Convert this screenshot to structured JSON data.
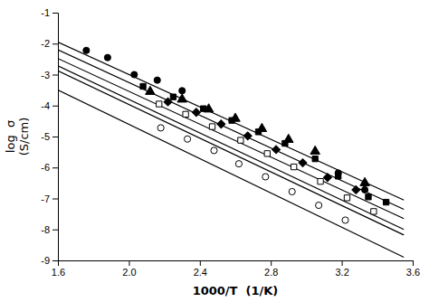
{
  "chart_data": {
    "type": "scatter",
    "title": "",
    "xlabel": "1000/T  (1/K)",
    "ylabel": "log  σ\n(S/cm)",
    "xlim": [
      1.6,
      3.6
    ],
    "ylim": [
      -9,
      -1
    ],
    "xticks": [
      1.6,
      {
        "value": 2.0,
        "label": "2.0"
      },
      2.4,
      2.8,
      3.2,
      3.6
    ],
    "yticks": [
      -9,
      -8,
      -7,
      -6,
      -5,
      -4,
      -3,
      -2,
      -1
    ],
    "series": [
      {
        "type": "line",
        "color": "#000000",
        "x": [
          1.6,
          3.55
        ],
        "values": [
          -1.95,
          -7.05
        ]
      },
      {
        "type": "scatter",
        "marker": "circle",
        "color": "#000000",
        "x": [
          1.76,
          1.88,
          2.03,
          2.16,
          2.3,
          3.18,
          3.33
        ],
        "values": [
          -2.22,
          -2.45,
          -3.0,
          -3.18,
          -3.52,
          -6.18,
          -6.72
        ]
      },
      {
        "type": "line",
        "color": "#000000",
        "x": [
          1.6,
          3.55
        ],
        "values": [
          -2.2,
          -7.35
        ]
      },
      {
        "type": "scatter",
        "marker": "triangle",
        "color": "#000000",
        "x": [
          2.12,
          2.3,
          2.45,
          2.6,
          2.75,
          2.9,
          3.05,
          3.33
        ],
        "values": [
          -3.55,
          -3.8,
          -4.12,
          -4.42,
          -4.75,
          -5.1,
          -5.48,
          -6.5
        ]
      },
      {
        "type": "line",
        "color": "#000000",
        "x": [
          1.6,
          3.55
        ],
        "values": [
          -2.48,
          -7.65
        ]
      },
      {
        "type": "scatter",
        "marker": "square",
        "color": "#000000",
        "x": [
          2.08,
          2.25,
          2.42,
          2.58,
          2.73,
          2.88,
          3.05,
          3.18,
          3.35,
          3.45
        ],
        "values": [
          -3.38,
          -3.72,
          -4.1,
          -4.48,
          -4.85,
          -5.22,
          -5.72,
          -6.28,
          -6.95,
          -7.12
        ]
      },
      {
        "type": "line",
        "color": "#000000",
        "x": [
          1.6,
          3.55
        ],
        "values": [
          -2.72,
          -8.0
        ]
      },
      {
        "type": "scatter",
        "marker": "diamond",
        "color": "#000000",
        "x": [
          2.22,
          2.38,
          2.52,
          2.67,
          2.83,
          2.98,
          3.12,
          3.28
        ],
        "values": [
          -3.88,
          -4.22,
          -4.6,
          -4.98,
          -5.42,
          -5.85,
          -6.32,
          -6.72
        ]
      },
      {
        "type": "line",
        "color": "#000000",
        "x": [
          1.6,
          3.55
        ],
        "values": [
          -2.88,
          -8.18
        ]
      },
      {
        "type": "scatter",
        "marker": "square",
        "color": "#ffffff",
        "x": [
          2.17,
          2.32,
          2.47,
          2.63,
          2.78,
          2.93,
          3.08,
          3.23,
          3.38
        ],
        "values": [
          -3.95,
          -4.28,
          -4.68,
          -5.12,
          -5.55,
          -5.98,
          -6.45,
          -6.98,
          -7.42
        ]
      },
      {
        "type": "line",
        "color": "#000000",
        "x": [
          1.6,
          3.55
        ],
        "values": [
          -3.5,
          -8.9
        ]
      },
      {
        "type": "scatter",
        "marker": "circle",
        "color": "#ffffff",
        "x": [
          2.18,
          2.33,
          2.48,
          2.62,
          2.77,
          2.92,
          3.07,
          3.22
        ],
        "values": [
          -4.72,
          -5.08,
          -5.45,
          -5.88,
          -6.3,
          -6.78,
          -7.22,
          -7.7
        ]
      }
    ]
  }
}
